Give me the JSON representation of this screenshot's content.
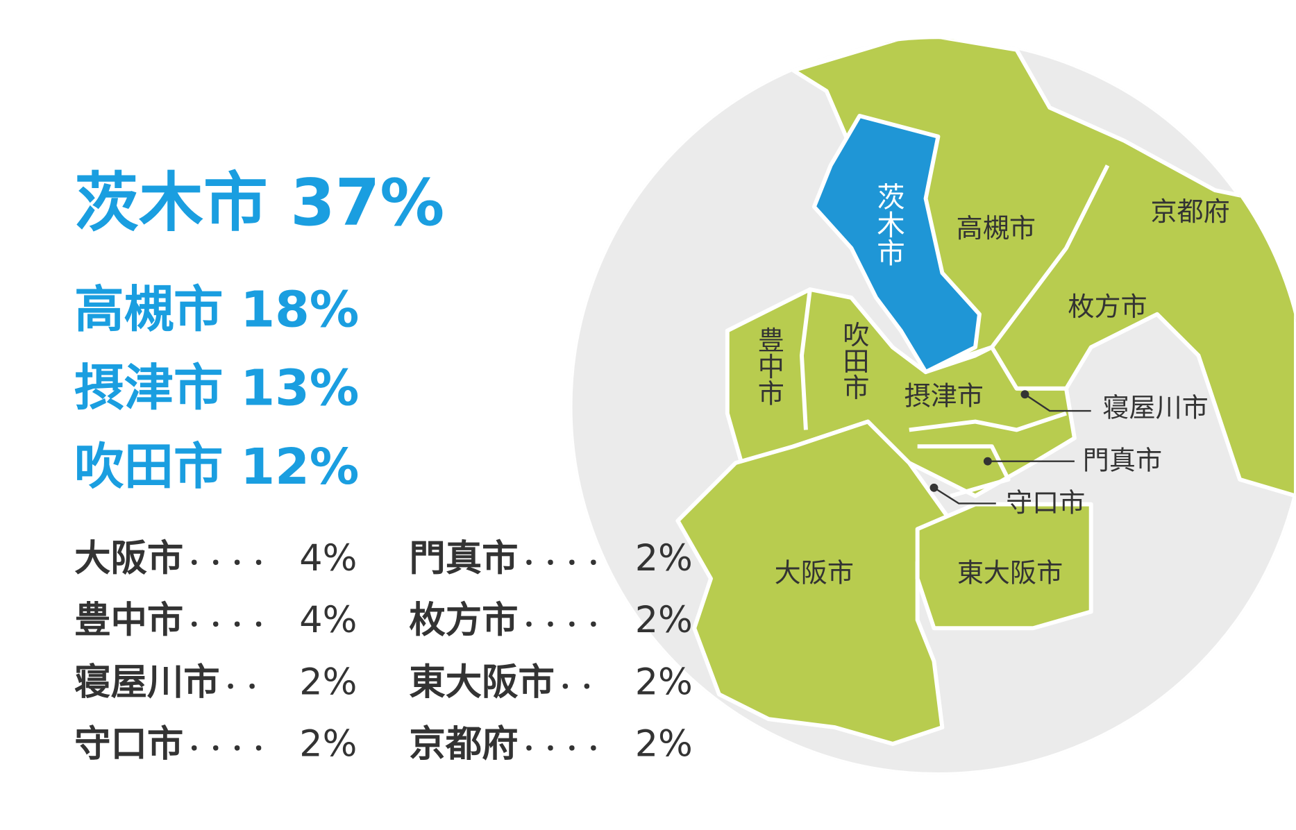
{
  "headline": {
    "name": "茨木市",
    "share": "37%"
  },
  "top": [
    {
      "name": "高槻市",
      "share": "18%"
    },
    {
      "name": "摂津市",
      "share": "13%"
    },
    {
      "name": "吹田市",
      "share": "12%"
    }
  ],
  "others": [
    {
      "name": "大阪市",
      "leader": "・・・・",
      "share": "4%"
    },
    {
      "name": "豊中市",
      "leader": "・・・・",
      "share": "4%"
    },
    {
      "name": "寝屋川市",
      "leader": "・・",
      "share": "2%"
    },
    {
      "name": "守口市",
      "leader": "・・・・",
      "share": "2%"
    },
    {
      "name": "門真市",
      "leader": "・・・・",
      "share": "2%"
    },
    {
      "name": "枚方市",
      "leader": "・・・・",
      "share": "2%"
    },
    {
      "name": "東大阪市",
      "leader": "・・",
      "share": "2%"
    },
    {
      "name": "京都府",
      "leader": "・・・・",
      "share": "2%"
    }
  ],
  "map_labels": [
    "茨木市",
    "高槻市",
    "京都府",
    "枚方市",
    "豊中市",
    "吹田市",
    "摂津市",
    "寝屋川市",
    "門真市",
    "守口市",
    "大阪市",
    "東大阪市"
  ]
}
